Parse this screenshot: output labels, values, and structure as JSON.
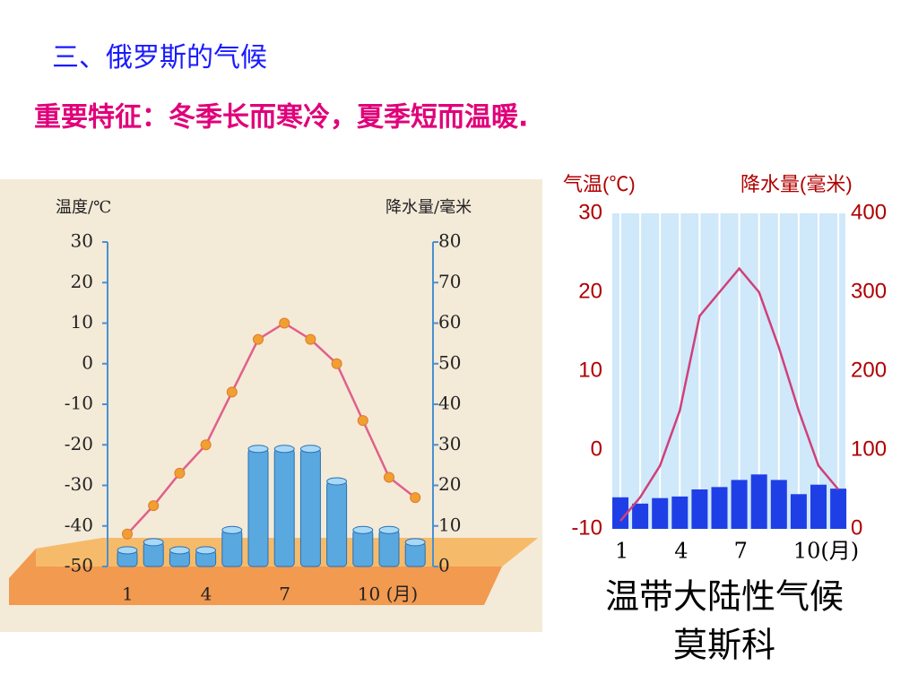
{
  "header": {
    "title": "三、俄罗斯的气候",
    "subtitle": "重要特征：冬季长而寒冷，夏季短而温暖."
  },
  "chart_data": [
    {
      "type": "combo",
      "y_label": "温度/℃",
      "y2_label": "降水量/毫米",
      "categories": [
        "1",
        null,
        null,
        "4",
        null,
        null,
        "7",
        null,
        null,
        "10 (月)",
        null,
        null
      ],
      "series": [
        {
          "type": "bar",
          "axis": "y2",
          "color": "#5aa8e0",
          "values": [
            4,
            6,
            4,
            4,
            9,
            29,
            29,
            29,
            21,
            9,
            9,
            6
          ]
        },
        {
          "type": "line",
          "axis": "y",
          "color": "#e0608a",
          "marker_color": "#f0a030",
          "values": [
            -42,
            -35,
            -27,
            -20,
            -7,
            6,
            10,
            6,
            0,
            -14,
            -28,
            -33
          ]
        }
      ],
      "ylim": [
        -50,
        30
      ],
      "yticks": [
        -50,
        -40,
        -30,
        -20,
        -10,
        0,
        10,
        20,
        30
      ],
      "y2lim": [
        0,
        80
      ],
      "y2ticks": [
        0,
        10,
        20,
        30,
        40,
        50,
        60,
        70,
        80
      ],
      "grid": false
    },
    {
      "type": "combo",
      "y_label": "气温(℃)",
      "y2_label": "降水量(毫米)",
      "categories": [
        "1",
        null,
        null,
        "4",
        null,
        null,
        "7",
        null,
        null,
        "10(月)",
        null,
        null
      ],
      "series": [
        {
          "type": "bar",
          "axis": "y2",
          "color": "#1f3fe6",
          "values": [
            40,
            32,
            39,
            41,
            50,
            53,
            62,
            69,
            62,
            44,
            56,
            51
          ]
        },
        {
          "type": "line",
          "axis": "y",
          "color": "#d0407a",
          "values": [
            -9,
            -6,
            -2,
            5,
            17,
            20,
            23,
            20,
            13,
            5,
            -2,
            -5
          ]
        }
      ],
      "ylim": [
        -10,
        30
      ],
      "yticks": [
        -10,
        0,
        10,
        20,
        30
      ],
      "y2lim": [
        0,
        400
      ],
      "y2ticks": [
        0,
        100,
        200,
        300,
        400
      ],
      "grid": true
    }
  ],
  "caption": {
    "line1": "温带大陆性气候",
    "line2": "莫斯科"
  }
}
